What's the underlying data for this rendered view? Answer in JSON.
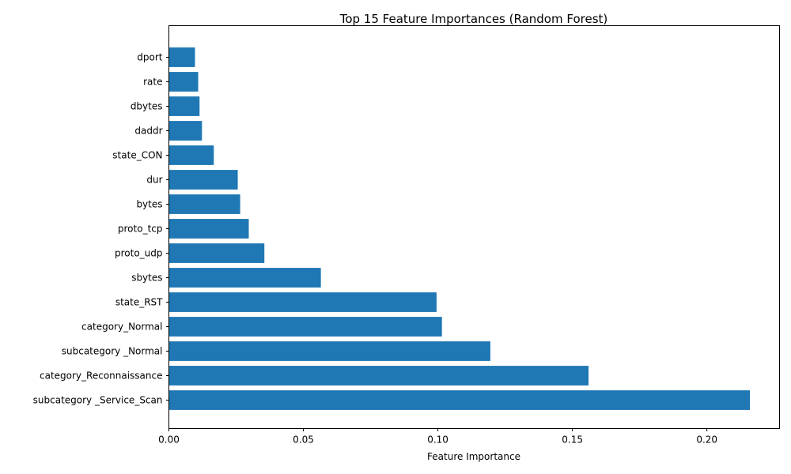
{
  "chart_data": {
    "type": "bar",
    "orientation": "horizontal",
    "title": "Top 15 Feature Importances (Random Forest)",
    "xlabel": "Feature Importance",
    "ylabel": "",
    "xlim": [
      0,
      0.227
    ],
    "x_ticks": [
      {
        "value": 0.0,
        "label": "0.00"
      },
      {
        "value": 0.05,
        "label": "0.05"
      },
      {
        "value": 0.1,
        "label": "0.10"
      },
      {
        "value": 0.15,
        "label": "0.15"
      },
      {
        "value": 0.2,
        "label": "0.20"
      }
    ],
    "categories": [
      "subcategory _Service_Scan",
      "category_Reconnaissance",
      "subcategory _Normal",
      "category_Normal",
      "state_RST",
      "sbytes",
      "proto_udp",
      "proto_tcp",
      "bytes",
      "dur",
      "state_CON",
      "daddr",
      "dbytes",
      "rate",
      "dport"
    ],
    "values": [
      0.216,
      0.156,
      0.1195,
      0.1015,
      0.0995,
      0.0565,
      0.0355,
      0.0297,
      0.0265,
      0.0256,
      0.0167,
      0.0123,
      0.0114,
      0.0109,
      0.0097
    ],
    "bar_color": "#1f77b4",
    "grid": false
  }
}
